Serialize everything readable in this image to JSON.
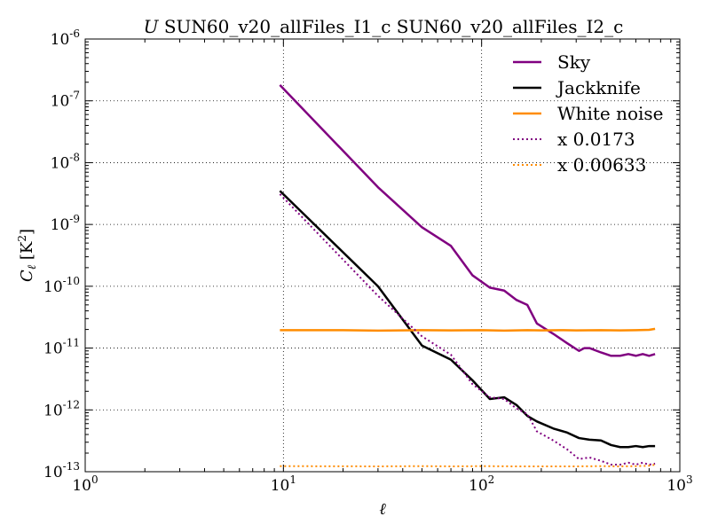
{
  "chart_data": {
    "type": "line",
    "title_italic": "U",
    "title": " SUN60_v20_allFiles_I1_c SUN60_v20_allFiles_I2_c",
    "xlabel": "ℓ",
    "ylabel_main": "C",
    "ylabel_sub": "ℓ",
    "ylabel_unit_open": " [K",
    "ylabel_unit_sup": "2",
    "ylabel_unit_close": "]",
    "xscale": "log",
    "yscale": "log",
    "xlim": [
      1,
      1000
    ],
    "ylim": [
      1e-13,
      1e-06
    ],
    "grid": true,
    "legend_position": "top-right",
    "x_ticks": [
      {
        "value": 1,
        "base": "10",
        "exp": "0"
      },
      {
        "value": 10,
        "base": "10",
        "exp": "1"
      },
      {
        "value": 100,
        "base": "10",
        "exp": "2"
      },
      {
        "value": 1000,
        "base": "10",
        "exp": "3"
      }
    ],
    "y_ticks": [
      {
        "value": 1e-13,
        "base": "10",
        "exp": "-13"
      },
      {
        "value": 1e-12,
        "base": "10",
        "exp": "-12"
      },
      {
        "value": 1e-11,
        "base": "10",
        "exp": "-11"
      },
      {
        "value": 1e-10,
        "base": "10",
        "exp": "-10"
      },
      {
        "value": 1e-09,
        "base": "10",
        "exp": "-9"
      },
      {
        "value": 1e-08,
        "base": "10",
        "exp": "-8"
      },
      {
        "value": 1e-07,
        "base": "10",
        "exp": "-7"
      },
      {
        "value": 1e-06,
        "base": "10",
        "exp": "-6"
      }
    ],
    "series": [
      {
        "name": "Sky",
        "color": "#800080",
        "style": "solid",
        "x": [
          9.6,
          30,
          50,
          70,
          90,
          110,
          130,
          150,
          170,
          190,
          230,
          270,
          310,
          330,
          350,
          400,
          450,
          500,
          550,
          600,
          650,
          700,
          750
        ],
        "y": [
          1.8e-07,
          4e-09,
          9e-10,
          4.5e-10,
          1.5e-10,
          9.5e-11,
          8.5e-11,
          6e-11,
          5e-11,
          2.5e-11,
          1.7e-11,
          1.2e-11,
          9e-12,
          1e-11,
          1e-11,
          8.5e-12,
          7.5e-12,
          7.5e-12,
          8e-12,
          7.5e-12,
          8e-12,
          7.5e-12,
          8e-12
        ]
      },
      {
        "name": "Jackknife",
        "color": "#000000",
        "style": "solid",
        "x": [
          9.6,
          30,
          50,
          70,
          90,
          110,
          130,
          150,
          170,
          190,
          230,
          270,
          310,
          350,
          400,
          450,
          500,
          550,
          600,
          650,
          700,
          750
        ],
        "y": [
          3.5e-09,
          1e-10,
          1.1e-11,
          6.5e-12,
          3e-12,
          1.5e-12,
          1.6e-12,
          1.2e-12,
          8e-13,
          6.5e-13,
          5e-13,
          4.3e-13,
          3.5e-13,
          3.3e-13,
          3.2e-13,
          2.7e-13,
          2.5e-13,
          2.5e-13,
          2.6e-13,
          2.5e-13,
          2.6e-13,
          2.6e-13
        ]
      },
      {
        "name": "White noise",
        "color": "#FF8C00",
        "style": "solid",
        "x": [
          9.6,
          20,
          30,
          50,
          70,
          100,
          130,
          170,
          200,
          250,
          300,
          400,
          500,
          600,
          700,
          750
        ],
        "y": [
          1.95e-11,
          1.95e-11,
          1.92e-11,
          1.95e-11,
          1.93e-11,
          1.95e-11,
          1.92e-11,
          1.95e-11,
          1.93e-11,
          1.95e-11,
          1.93e-11,
          1.95e-11,
          1.93e-11,
          1.95e-11,
          1.97e-11,
          2.05e-11
        ]
      },
      {
        "name": "x 0.0173",
        "color": "#800080",
        "style": "dotted",
        "x": [
          9.6,
          30,
          50,
          70,
          90,
          110,
          130,
          150,
          170,
          190,
          230,
          270,
          310,
          350,
          400,
          450,
          500,
          550,
          600,
          650,
          700,
          750
        ],
        "y": [
          3.1e-09,
          7e-11,
          1.55e-11,
          7.8e-12,
          2.6e-12,
          1.6e-12,
          1.5e-12,
          1.05e-12,
          8.6e-13,
          4.5e-13,
          3.2e-13,
          2.3e-13,
          1.6e-13,
          1.7e-13,
          1.5e-13,
          1.3e-13,
          1.3e-13,
          1.4e-13,
          1.3e-13,
          1.4e-13,
          1.3e-13,
          1.35e-13
        ]
      },
      {
        "name": "x 0.00633",
        "color": "#FF8C00",
        "style": "dotted",
        "x": [
          9.6,
          30,
          50,
          70,
          100,
          150,
          200,
          300,
          400,
          500,
          600,
          700,
          750
        ],
        "y": [
          1.23e-13,
          1.22e-13,
          1.23e-13,
          1.22e-13,
          1.23e-13,
          1.22e-13,
          1.22e-13,
          1.22e-13,
          1.23e-13,
          1.22e-13,
          1.23e-13,
          1.25e-13,
          1.3e-13
        ]
      }
    ]
  }
}
